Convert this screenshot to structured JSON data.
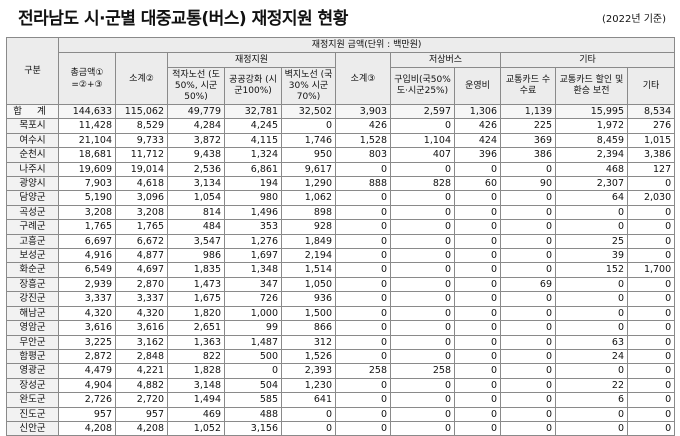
{
  "title": "전라남도 시·군별 대중교통(버스) 재정지원 현황",
  "note": "(2022년 기준)",
  "header": {
    "region": "구분",
    "group_main": "재정지원 금액(단위 : 백만원)",
    "total": "총금액① =②+③",
    "sub2": "소계②",
    "fin_support": "재정지원",
    "route_loss": "적자노선 (도50%, 시군50%)",
    "public_enh": "공공강화 (시군100%)",
    "remote_route": "벽지노선 (국30% 시군70%)",
    "sub3": "소계③",
    "low_bus": "저상버스",
    "purchase": "구입비(국50% 도·시군25%)",
    "operation": "운영비",
    "other": "기타",
    "card_fee": "교통카드 수수료",
    "card_disc": "교통카드 할인 및 환승 보전",
    "etc": "기타"
  },
  "rows": [
    [
      "합 계",
      "144,633",
      "115,062",
      "49,779",
      "32,781",
      "32,502",
      "3,903",
      "2,597",
      "1,306",
      "1,139",
      "15,995",
      "8,534"
    ],
    [
      "목포시",
      "11,428",
      "8,529",
      "4,284",
      "4,245",
      "0",
      "426",
      "0",
      "426",
      "225",
      "1,972",
      "276"
    ],
    [
      "여수시",
      "21,104",
      "9,733",
      "3,872",
      "4,115",
      "1,746",
      "1,528",
      "1,104",
      "424",
      "369",
      "8,459",
      "1,015"
    ],
    [
      "순천시",
      "18,681",
      "11,712",
      "9,438",
      "1,324",
      "950",
      "803",
      "407",
      "396",
      "386",
      "2,394",
      "3,386"
    ],
    [
      "나주시",
      "19,609",
      "19,014",
      "2,536",
      "6,861",
      "9,617",
      "0",
      "0",
      "0",
      "0",
      "468",
      "127"
    ],
    [
      "광양시",
      "7,903",
      "4,618",
      "3,134",
      "194",
      "1,290",
      "888",
      "828",
      "60",
      "90",
      "2,307",
      "0"
    ],
    [
      "담양군",
      "5,190",
      "3,096",
      "1,054",
      "980",
      "1,062",
      "0",
      "0",
      "0",
      "0",
      "64",
      "2,030"
    ],
    [
      "곡성군",
      "3,208",
      "3,208",
      "814",
      "1,496",
      "898",
      "0",
      "0",
      "0",
      "0",
      "0",
      "0"
    ],
    [
      "구례군",
      "1,765",
      "1,765",
      "484",
      "353",
      "928",
      "0",
      "0",
      "0",
      "0",
      "0",
      "0"
    ],
    [
      "고흥군",
      "6,697",
      "6,672",
      "3,547",
      "1,276",
      "1,849",
      "0",
      "0",
      "0",
      "0",
      "25",
      "0"
    ],
    [
      "보성군",
      "4,916",
      "4,877",
      "986",
      "1,697",
      "2,194",
      "0",
      "0",
      "0",
      "0",
      "39",
      "0"
    ],
    [
      "화순군",
      "6,549",
      "4,697",
      "1,835",
      "1,348",
      "1,514",
      "0",
      "0",
      "0",
      "0",
      "152",
      "1,700"
    ],
    [
      "장흥군",
      "2,939",
      "2,870",
      "1,473",
      "347",
      "1,050",
      "0",
      "0",
      "0",
      "69",
      "0",
      "0"
    ],
    [
      "강진군",
      "3,337",
      "3,337",
      "1,675",
      "726",
      "936",
      "0",
      "0",
      "0",
      "0",
      "0",
      "0"
    ],
    [
      "해남군",
      "4,320",
      "4,320",
      "1,820",
      "1,000",
      "1,500",
      "0",
      "0",
      "0",
      "0",
      "0",
      "0"
    ],
    [
      "영암군",
      "3,616",
      "3,616",
      "2,651",
      "99",
      "866",
      "0",
      "0",
      "0",
      "0",
      "0",
      "0"
    ],
    [
      "무안군",
      "3,225",
      "3,162",
      "1,363",
      "1,487",
      "312",
      "0",
      "0",
      "0",
      "0",
      "63",
      "0"
    ],
    [
      "함평군",
      "2,872",
      "2,848",
      "822",
      "500",
      "1,526",
      "0",
      "0",
      "0",
      "0",
      "24",
      "0"
    ],
    [
      "영광군",
      "4,479",
      "4,221",
      "1,828",
      "0",
      "2,393",
      "258",
      "258",
      "0",
      "0",
      "0",
      "0"
    ],
    [
      "장성군",
      "4,904",
      "4,882",
      "3,148",
      "504",
      "1,230",
      "0",
      "0",
      "0",
      "0",
      "22",
      "0"
    ],
    [
      "완도군",
      "2,726",
      "2,720",
      "1,494",
      "585",
      "641",
      "0",
      "0",
      "0",
      "0",
      "6",
      "0"
    ],
    [
      "진도군",
      "957",
      "957",
      "469",
      "488",
      "0",
      "0",
      "0",
      "0",
      "0",
      "0",
      "0"
    ],
    [
      "신안군",
      "4,208",
      "4,208",
      "1,052",
      "3,156",
      "0",
      "0",
      "0",
      "0",
      "0",
      "0",
      "0"
    ]
  ]
}
